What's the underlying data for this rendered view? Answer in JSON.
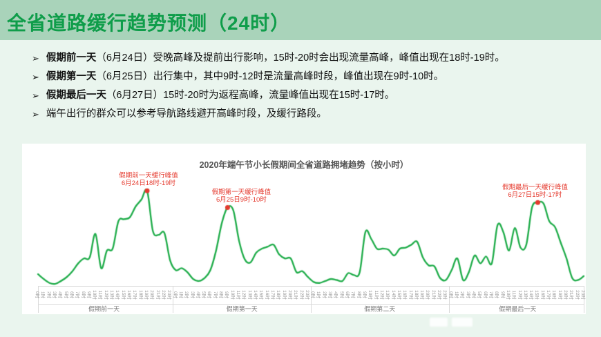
{
  "header": {
    "title": "全省道路缓行趋势预测（24时）"
  },
  "bullets": [
    {
      "marker": "➢",
      "bold": "假期前一天",
      "text": "（6月24日）受晚高峰及提前出行影响，15时-20时会出现流量高峰，峰值出现在18时-19时。"
    },
    {
      "marker": "➢",
      "bold": "假期第一天",
      "text": "（6月25日）出行集中，其中9时-12时是流量高峰时段，峰值出现在9时-10时。"
    },
    {
      "marker": "➢",
      "bold": "假期最后一天",
      "text": "（6月27日）15时-20时为返程高峰，流量峰值出现在15时-17时。"
    },
    {
      "marker": "➢",
      "bold": "",
      "text": "端午出行的群众可以参考导航路线避开高峰时段，及缓行路段。"
    }
  ],
  "chart_data": {
    "type": "line",
    "title": "2020年端午节小长假期间全省道路拥堵趋势（按小时）",
    "xlabel": "",
    "ylabel": "",
    "ylim": [
      0,
      100
    ],
    "grid": false,
    "legend": "none",
    "x_hours": [
      "0时",
      "1时",
      "2时",
      "3时",
      "4时",
      "5时",
      "6时",
      "7时",
      "8时",
      "9时",
      "10时",
      "11时",
      "12时",
      "13时",
      "14时",
      "15时",
      "16时",
      "17时",
      "18时",
      "19时",
      "20时",
      "21时",
      "22时",
      "23时"
    ],
    "day_groups": [
      "假期前一天",
      "假期第一天",
      "假期第二天",
      "假期最后一天"
    ],
    "series": [
      {
        "name": "全省道路拥堵趋势",
        "day_values": [
          [
            12,
            7,
            3,
            2,
            5,
            9,
            15,
            23,
            28,
            29,
            53,
            18,
            36,
            38,
            66,
            68,
            70,
            81,
            88,
            97,
            56,
            52,
            54,
            26
          ],
          [
            16,
            18,
            14,
            7,
            5,
            8,
            16,
            36,
            64,
            80,
            77,
            46,
            27,
            24,
            34,
            38,
            40,
            42,
            32,
            28,
            28,
            14,
            15,
            9
          ],
          [
            4,
            3,
            5,
            7,
            6,
            5,
            13,
            11,
            14,
            55,
            48,
            38,
            38,
            37,
            31,
            38,
            39,
            42,
            45,
            29,
            21,
            20,
            8,
            6
          ],
          [
            16,
            28,
            6,
            14,
            31,
            23,
            30,
            23,
            62,
            55,
            36,
            59,
            39,
            42,
            80,
            85,
            84,
            66,
            60,
            44,
            28,
            8,
            6,
            10
          ]
        ]
      }
    ],
    "annotations": [
      {
        "line1": "假期前一天缓行峰值",
        "line2": "6月24日18时-19时",
        "day": 0,
        "hour": 19,
        "x_offset": 2
      },
      {
        "line1": "假期第一天缓行峰值",
        "line2": "6月25日9时-10时",
        "day": 1,
        "hour": 9,
        "x_offset": 20
      },
      {
        "line1": "假期最后一天缓行峰值",
        "line2": "6月27日15时-17时",
        "day": 3,
        "hour": 15,
        "x_offset": -4
      }
    ]
  },
  "colors": {
    "header_bg": "#a9d3ba",
    "header_text": "#0f9d4a",
    "body_bg": "#eaf5ee",
    "card_bg": "#ffffff",
    "line": "#21ad4b",
    "annotation": "#e53a2e",
    "axis_line": "#d9d9d9",
    "hour_label": "#999999",
    "day_label": "#7a7a7a",
    "chart_title": "#555555",
    "bullet_text": "#111111"
  },
  "watermark": {
    "label": ""
  }
}
